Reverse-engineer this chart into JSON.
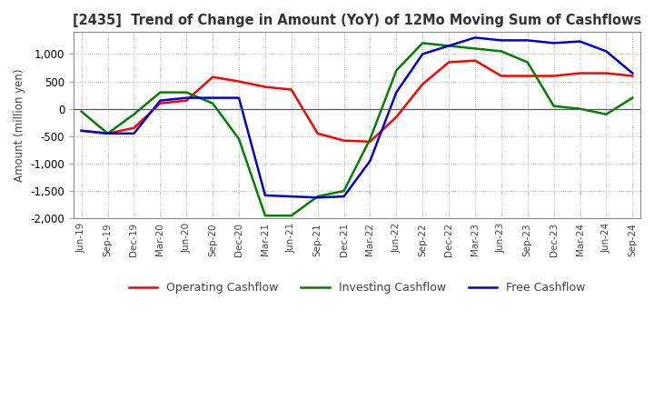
{
  "title": "[2435]  Trend of Change in Amount (YoY) of 12Mo Moving Sum of Cashflows",
  "ylabel": "Amount (million yen)",
  "title_color": "#333333",
  "background_color": "#ffffff",
  "grid_color": "#aaaaaa",
  "ylim": [
    -2000,
    1400
  ],
  "yticks": [
    -2000,
    -1500,
    -1000,
    -500,
    0,
    500,
    1000
  ],
  "labels": [
    "Operating Cashflow",
    "Investing Cashflow",
    "Free Cashflow"
  ],
  "colors": [
    "#ff0000",
    "#008000",
    "#0000cd"
  ],
  "x_labels": [
    "Jun-19",
    "Sep-19",
    "Dec-19",
    "Mar-20",
    "Jun-20",
    "Sep-20",
    "Dec-20",
    "Mar-21",
    "Jun-21",
    "Sep-21",
    "Dec-21",
    "Mar-22",
    "Jun-22",
    "Sep-22",
    "Dec-22",
    "Mar-23",
    "Jun-23",
    "Sep-23",
    "Dec-23",
    "Mar-24",
    "Jun-24",
    "Sep-24"
  ],
  "operating": [
    -400,
    -450,
    -350,
    100,
    150,
    580,
    500,
    400,
    350,
    -450,
    -580,
    -600,
    -150,
    450,
    850,
    880,
    600,
    600,
    600,
    650,
    650,
    600
  ],
  "investing": [
    -50,
    -450,
    -100,
    300,
    300,
    100,
    -550,
    -1950,
    -1950,
    -1600,
    -1500,
    -550,
    700,
    1200,
    1150,
    1100,
    1050,
    850,
    50,
    0,
    -100,
    200
  ],
  "free": [
    -400,
    -450,
    -450,
    150,
    200,
    200,
    200,
    -1580,
    -1600,
    -1620,
    -1600,
    -950,
    300,
    1000,
    1150,
    1300,
    1250,
    1250,
    1200,
    1230,
    1050,
    650
  ]
}
